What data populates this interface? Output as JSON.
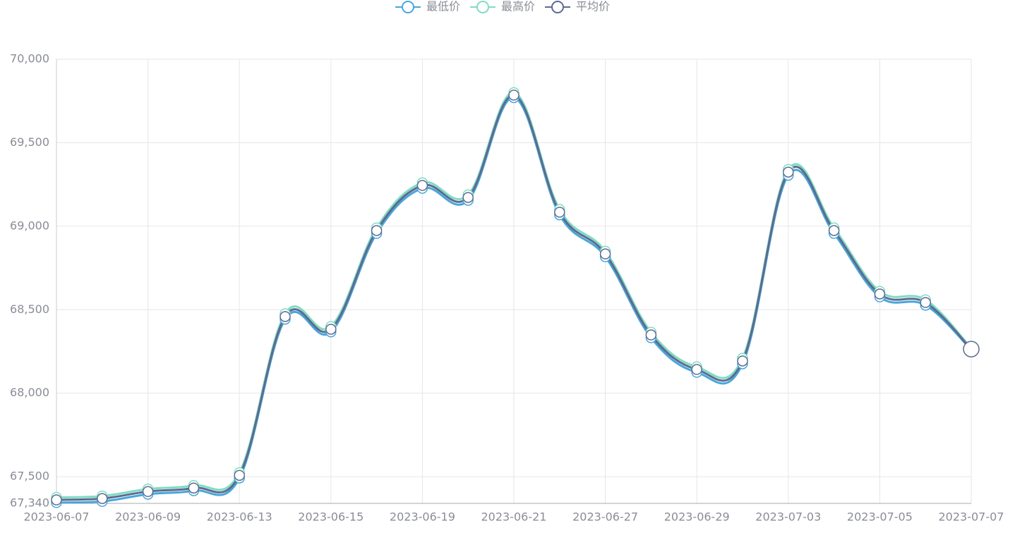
{
  "chart_data": {
    "type": "line",
    "categories": [
      "2023-06-07",
      null,
      "2023-06-09",
      null,
      "2023-06-13",
      null,
      "2023-06-15",
      null,
      "2023-06-19",
      null,
      "2023-06-21",
      null,
      "2023-06-27",
      null,
      "2023-06-29",
      null,
      "2023-07-03",
      null,
      "2023-07-05",
      null,
      "2023-07-07"
    ],
    "series": [
      {
        "name": "最低价",
        "color": "#48a6dc",
        "values": [
          67345,
          67352,
          67395,
          67416,
          67492,
          68443,
          68367,
          68957,
          69227,
          69155,
          69770,
          69068,
          68817,
          68332,
          68125,
          68176,
          69305,
          68957,
          68577,
          68527,
          68260
        ]
      },
      {
        "name": "最高价",
        "color": "#7fdcc4",
        "values": [
          67376,
          67384,
          67426,
          67447,
          67524,
          68476,
          68399,
          68990,
          69260,
          69188,
          69800,
          69100,
          68850,
          68365,
          68158,
          68209,
          69340,
          68990,
          68610,
          68559,
          68270
        ]
      },
      {
        "name": "平均价",
        "color": "#5d6b8e",
        "values": [
          67361,
          67369,
          67411,
          67432,
          67508,
          68459,
          68383,
          68974,
          69244,
          69172,
          69785,
          69084,
          68834,
          68349,
          68142,
          68193,
          69324,
          68974,
          68594,
          68543,
          68264
        ]
      }
    ],
    "ylim": [
      67340,
      70000
    ],
    "yticks": [
      {
        "value": 67340,
        "label": "67,340"
      },
      {
        "value": 67500,
        "label": "67,500"
      },
      {
        "value": 68000,
        "label": "68,000"
      },
      {
        "value": 68500,
        "label": "68,500"
      },
      {
        "value": 69000,
        "label": "69,000"
      },
      {
        "value": 69500,
        "label": "69,500"
      },
      {
        "value": 70000,
        "label": "70,000"
      }
    ],
    "grid": true,
    "legend": "top"
  }
}
